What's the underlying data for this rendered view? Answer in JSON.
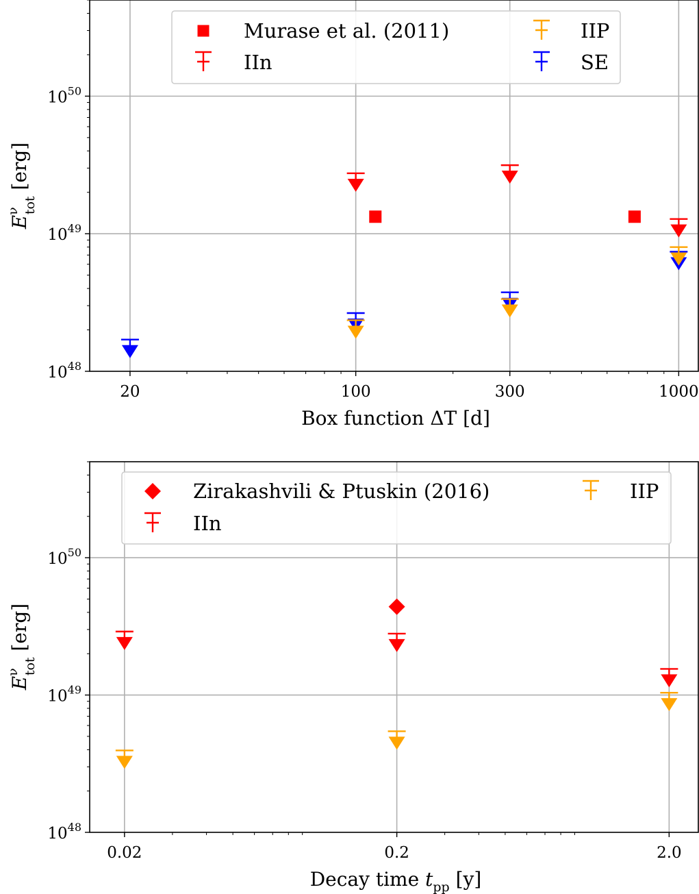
{
  "chart_data": [
    {
      "type": "scatter",
      "x_scale": "log",
      "y_scale": "log",
      "xlim": [
        15,
        1150
      ],
      "ylim": [
        1e+48,
        5e+50
      ],
      "xticks": [
        20,
        100,
        300,
        1000
      ],
      "xtick_labels": [
        "20",
        "100",
        "300",
        "1000"
      ],
      "ytick_labels": [
        {
          "base": "10",
          "exp": "48",
          "value": 1e+48
        },
        {
          "base": "10",
          "exp": "49",
          "value": 1e+49
        },
        {
          "base": "10",
          "exp": "50",
          "value": 1e+50
        }
      ],
      "xlabel": "Box function ΔT [d]",
      "ylabel": {
        "main": "E",
        "sup": "ν",
        "sub": "tot",
        "unit": " [erg]"
      },
      "grid": true,
      "legend_position": "top",
      "legend": [
        {
          "label": "Murase et al. (2011)",
          "marker": "square",
          "color": "#ff0000"
        },
        {
          "label": "IIP",
          "marker": "upper-limit",
          "color": "#ffa500"
        },
        {
          "label": "IIn",
          "marker": "upper-limit",
          "color": "#ff0000"
        },
        {
          "label": "SE",
          "marker": "upper-limit",
          "color": "#0000ff"
        }
      ],
      "series": [
        {
          "name": "Murase et al. (2011)",
          "marker": "square",
          "color": "#ff0000",
          "points": [
            {
              "x": 115,
              "y": 1.33e+49
            },
            {
              "x": 730,
              "y": 1.33e+49
            }
          ]
        },
        {
          "name": "IIn",
          "marker": "upper-limit",
          "color": "#ff0000",
          "points": [
            {
              "x": 100,
              "y": 2.75e+49
            },
            {
              "x": 300,
              "y": 3.15e+49
            },
            {
              "x": 1000,
              "y": 1.28e+49
            }
          ]
        },
        {
          "name": "IIP",
          "marker": "upper-limit",
          "color": "#ffa500",
          "points": [
            {
              "x": 100,
              "y": 2.35e+48
            },
            {
              "x": 300,
              "y": 3.35e+48
            },
            {
              "x": 1000,
              "y": 8e+48
            }
          ]
        },
        {
          "name": "SE",
          "marker": "upper-limit",
          "color": "#0000ff",
          "points": [
            {
              "x": 20,
              "y": 1.7e+48
            },
            {
              "x": 100,
              "y": 2.65e+48
            },
            {
              "x": 300,
              "y": 3.75e+48
            },
            {
              "x": 1000,
              "y": 7.4e+48
            }
          ]
        }
      ]
    },
    {
      "type": "scatter",
      "x_scale": "log",
      "y_scale": "log",
      "xlim": [
        0.0149,
        2.56
      ],
      "ylim": [
        1e+48,
        5e+50
      ],
      "xticks": [
        0.02,
        0.2,
        2.0
      ],
      "xtick_labels": [
        "0.02",
        "0.2",
        "2.0"
      ],
      "ytick_labels": [
        {
          "base": "10",
          "exp": "48",
          "value": 1e+48
        },
        {
          "base": "10",
          "exp": "49",
          "value": 1e+49
        },
        {
          "base": "10",
          "exp": "50",
          "value": 1e+50
        }
      ],
      "xlabel": {
        "main": "Decay time ",
        "italic": "t",
        "sub": "pp",
        "unit": " [y]"
      },
      "ylabel": {
        "main": "E",
        "sup": "ν",
        "sub": "tot",
        "unit": " [erg]"
      },
      "grid": true,
      "legend_position": "top",
      "legend": [
        {
          "label": "Zirakashvili & Ptuskin (2016)",
          "marker": "diamond",
          "color": "#ff0000"
        },
        {
          "label": "IIP",
          "marker": "upper-limit",
          "color": "#ffa500"
        },
        {
          "label": "IIn",
          "marker": "upper-limit",
          "color": "#ff0000"
        }
      ],
      "series": [
        {
          "name": "Zirakashvili & Ptuskin (2016)",
          "marker": "diamond",
          "color": "#ff0000",
          "points": [
            {
              "x": 0.2,
              "y": 4.4e+49
            }
          ]
        },
        {
          "name": "IIn",
          "marker": "upper-limit",
          "color": "#ff0000",
          "points": [
            {
              "x": 0.02,
              "y": 2.9e+49
            },
            {
              "x": 0.2,
              "y": 2.8e+49
            },
            {
              "x": 2.0,
              "y": 1.55e+49
            }
          ]
        },
        {
          "name": "IIP",
          "marker": "upper-limit",
          "color": "#ffa500",
          "points": [
            {
              "x": 0.02,
              "y": 3.95e+48
            },
            {
              "x": 0.2,
              "y": 5.45e+48
            },
            {
              "x": 2.0,
              "y": 1.04e+49
            }
          ]
        }
      ]
    }
  ]
}
